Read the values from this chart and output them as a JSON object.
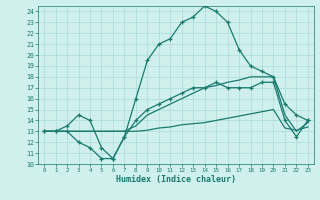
{
  "xlabel": "Humidex (Indice chaleur)",
  "x_values": [
    0,
    1,
    2,
    3,
    4,
    5,
    6,
    7,
    8,
    9,
    10,
    11,
    12,
    13,
    14,
    15,
    16,
    17,
    18,
    19,
    20,
    21,
    22,
    23
  ],
  "line1": [
    13,
    13,
    13.5,
    14.5,
    14,
    11.5,
    10.5,
    12.5,
    16,
    19.5,
    21,
    21.5,
    23,
    23.5,
    24.5,
    24,
    23,
    20.5,
    19,
    18.5,
    18,
    15.5,
    14.5,
    14
  ],
  "line2": [
    13,
    13,
    13,
    12,
    11.5,
    10.5,
    10.5,
    12.5,
    14,
    15,
    15.5,
    16,
    16.5,
    17,
    17,
    17.5,
    17,
    17,
    17,
    17.5,
    17.5,
    14,
    12.5,
    14
  ],
  "line3": [
    13,
    13,
    13,
    13,
    13,
    13,
    13,
    13,
    13.5,
    14.5,
    15,
    15.5,
    16,
    16.5,
    17,
    17.2,
    17.5,
    17.7,
    18,
    18,
    18,
    14.5,
    13,
    13.8
  ],
  "line4": [
    13,
    13,
    13,
    13,
    13,
    13,
    13,
    13,
    13,
    13.1,
    13.3,
    13.4,
    13.6,
    13.7,
    13.8,
    14,
    14.2,
    14.4,
    14.6,
    14.8,
    15,
    13.3,
    13.1,
    13.4
  ],
  "color": "#1a7a6e",
  "bg_color": "#cff0ec",
  "grid_color": "#aaddd8",
  "ylim": [
    10,
    24.5
  ],
  "xlim": [
    -0.5,
    23.5
  ],
  "yticks": [
    10,
    11,
    12,
    13,
    14,
    15,
    16,
    17,
    18,
    19,
    20,
    21,
    22,
    23,
    24
  ],
  "xticks": [
    0,
    1,
    2,
    3,
    4,
    5,
    6,
    7,
    8,
    9,
    10,
    11,
    12,
    13,
    14,
    15,
    16,
    17,
    18,
    19,
    20,
    21,
    22,
    23
  ]
}
